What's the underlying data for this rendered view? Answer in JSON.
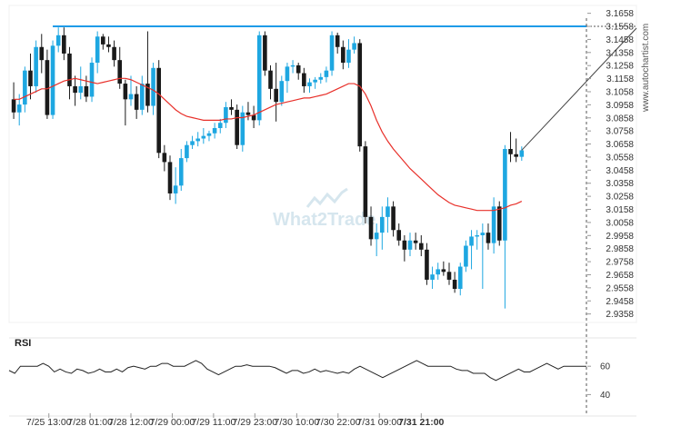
{
  "watermarks": {
    "brand": "What2Trade",
    "side": "www.autochartist.com"
  },
  "chart_data": {
    "type": "candlestick",
    "y_ticks": [
      "3.1658",
      "3.1558",
      "3.1458",
      "3.1358",
      "3.1258",
      "3.1158",
      "3.1058",
      "3.0958",
      "3.0858",
      "3.0758",
      "3.0658",
      "3.0558",
      "3.0458",
      "3.0358",
      "3.0258",
      "3.0158",
      "3.0058",
      "2.9958",
      "2.9858",
      "2.9758",
      "2.9658",
      "2.9558",
      "2.9458",
      "2.9358"
    ],
    "ylim": [
      2.9293,
      3.1718
    ],
    "x_labels": [
      "7/25 13:00",
      "7/28 01:00",
      "7/28 12:00",
      "7/29 00:00",
      "7/29 11:00",
      "7/29 23:00",
      "7/30 10:00",
      "7/30 22:00",
      "7/31 09:00",
      "7/31 21:00"
    ],
    "x_label_positions": [
      6.3,
      13.7,
      21,
      28.4,
      35.8,
      43.2,
      50.7,
      58.1,
      65.5,
      73
    ],
    "x_count": 75,
    "colors": {
      "up": "#1ea7e1",
      "down": "#1a1a1a",
      "ma": "#e8302a",
      "resistance": "#1e9be8",
      "rsi": "#222222"
    },
    "resistance_level": 3.1558,
    "candles": [
      {
        "o": 3.1,
        "h": 3.113,
        "l": 3.085,
        "c": 3.09
      },
      {
        "o": 3.09,
        "h": 3.104,
        "l": 3.08,
        "c": 3.096
      },
      {
        "o": 3.096,
        "h": 3.125,
        "l": 3.09,
        "c": 3.122
      },
      {
        "o": 3.122,
        "h": 3.135,
        "l": 3.1,
        "c": 3.11
      },
      {
        "o": 3.11,
        "h": 3.145,
        "l": 3.105,
        "c": 3.14
      },
      {
        "o": 3.14,
        "h": 3.15,
        "l": 3.12,
        "c": 3.13
      },
      {
        "o": 3.13,
        "h": 3.138,
        "l": 3.085,
        "c": 3.088
      },
      {
        "o": 3.088,
        "h": 3.145,
        "l": 3.085,
        "c": 3.141
      },
      {
        "o": 3.141,
        "h": 3.155,
        "l": 3.136,
        "c": 3.149
      },
      {
        "o": 3.149,
        "h": 3.155,
        "l": 3.13,
        "c": 3.135
      },
      {
        "o": 3.135,
        "h": 3.14,
        "l": 3.1,
        "c": 3.11
      },
      {
        "o": 3.11,
        "h": 3.118,
        "l": 3.095,
        "c": 3.105
      },
      {
        "o": 3.105,
        "h": 3.125,
        "l": 3.1,
        "c": 3.11
      },
      {
        "o": 3.11,
        "h": 3.118,
        "l": 3.098,
        "c": 3.102
      },
      {
        "o": 3.102,
        "h": 3.132,
        "l": 3.098,
        "c": 3.128
      },
      {
        "o": 3.128,
        "h": 3.152,
        "l": 3.12,
        "c": 3.148
      },
      {
        "o": 3.148,
        "h": 3.15,
        "l": 3.138,
        "c": 3.142
      },
      {
        "o": 3.142,
        "h": 3.148,
        "l": 3.136,
        "c": 3.14
      },
      {
        "o": 3.14,
        "h": 3.145,
        "l": 3.125,
        "c": 3.13
      },
      {
        "o": 3.13,
        "h": 3.14,
        "l": 3.108,
        "c": 3.112
      },
      {
        "o": 3.112,
        "h": 3.115,
        "l": 3.08,
        "c": 3.1
      },
      {
        "o": 3.1,
        "h": 3.118,
        "l": 3.095,
        "c": 3.104
      },
      {
        "o": 3.104,
        "h": 3.11,
        "l": 3.085,
        "c": 3.092
      },
      {
        "o": 3.092,
        "h": 3.118,
        "l": 3.088,
        "c": 3.112
      },
      {
        "o": 3.112,
        "h": 3.152,
        "l": 3.09,
        "c": 3.095
      },
      {
        "o": 3.095,
        "h": 3.128,
        "l": 3.088,
        "c": 3.124
      },
      {
        "o": 3.124,
        "h": 3.13,
        "l": 3.055,
        "c": 3.059
      },
      {
        "o": 3.059,
        "h": 3.065,
        "l": 3.045,
        "c": 3.052
      },
      {
        "o": 3.052,
        "h": 3.057,
        "l": 3.023,
        "c": 3.028
      },
      {
        "o": 3.028,
        "h": 3.048,
        "l": 3.02,
        "c": 3.034
      },
      {
        "o": 3.034,
        "h": 3.062,
        "l": 3.03,
        "c": 3.055
      },
      {
        "o": 3.055,
        "h": 3.068,
        "l": 3.052,
        "c": 3.065
      },
      {
        "o": 3.065,
        "h": 3.072,
        "l": 3.062,
        "c": 3.068
      },
      {
        "o": 3.068,
        "h": 3.075,
        "l": 3.064,
        "c": 3.07
      },
      {
        "o": 3.07,
        "h": 3.078,
        "l": 3.066,
        "c": 3.072
      },
      {
        "o": 3.072,
        "h": 3.076,
        "l": 3.068,
        "c": 3.074
      },
      {
        "o": 3.074,
        "h": 3.082,
        "l": 3.07,
        "c": 3.078
      },
      {
        "o": 3.078,
        "h": 3.085,
        "l": 3.074,
        "c": 3.082
      },
      {
        "o": 3.082,
        "h": 3.098,
        "l": 3.078,
        "c": 3.094
      },
      {
        "o": 3.094,
        "h": 3.1,
        "l": 3.088,
        "c": 3.092
      },
      {
        "o": 3.092,
        "h": 3.096,
        "l": 3.062,
        "c": 3.065
      },
      {
        "o": 3.065,
        "h": 3.095,
        "l": 3.06,
        "c": 3.09
      },
      {
        "o": 3.09,
        "h": 3.098,
        "l": 3.084,
        "c": 3.088
      },
      {
        "o": 3.088,
        "h": 3.095,
        "l": 3.078,
        "c": 3.084
      },
      {
        "o": 3.084,
        "h": 3.152,
        "l": 3.08,
        "c": 3.149
      },
      {
        "o": 3.149,
        "h": 3.152,
        "l": 3.118,
        "c": 3.122
      },
      {
        "o": 3.122,
        "h": 3.126,
        "l": 3.1,
        "c": 3.108
      },
      {
        "o": 3.108,
        "h": 3.128,
        "l": 3.083,
        "c": 3.098
      },
      {
        "o": 3.098,
        "h": 3.118,
        "l": 3.095,
        "c": 3.114
      },
      {
        "o": 3.114,
        "h": 3.128,
        "l": 3.105,
        "c": 3.125
      },
      {
        "o": 3.125,
        "h": 3.13,
        "l": 3.12,
        "c": 3.126
      },
      {
        "o": 3.126,
        "h": 3.128,
        "l": 3.115,
        "c": 3.12
      },
      {
        "o": 3.12,
        "h": 3.124,
        "l": 3.105,
        "c": 3.11
      },
      {
        "o": 3.11,
        "h": 3.116,
        "l": 3.105,
        "c": 3.113
      },
      {
        "o": 3.113,
        "h": 3.117,
        "l": 3.108,
        "c": 3.115
      },
      {
        "o": 3.115,
        "h": 3.12,
        "l": 3.112,
        "c": 3.117
      },
      {
        "o": 3.117,
        "h": 3.125,
        "l": 3.113,
        "c": 3.122
      },
      {
        "o": 3.122,
        "h": 3.152,
        "l": 3.118,
        "c": 3.149
      },
      {
        "o": 3.149,
        "h": 3.151,
        "l": 3.135,
        "c": 3.14
      },
      {
        "o": 3.14,
        "h": 3.145,
        "l": 3.123,
        "c": 3.128
      },
      {
        "o": 3.128,
        "h": 3.146,
        "l": 3.124,
        "c": 3.138
      },
      {
        "o": 3.138,
        "h": 3.148,
        "l": 3.135,
        "c": 3.143
      },
      {
        "o": 3.143,
        "h": 3.146,
        "l": 3.06,
        "c": 3.064
      },
      {
        "o": 3.064,
        "h": 3.068,
        "l": 3.005,
        "c": 3.01
      },
      {
        "o": 3.01,
        "h": 3.018,
        "l": 2.988,
        "c": 2.993
      },
      {
        "o": 2.993,
        "h": 3.005,
        "l": 2.98,
        "c": 2.998
      },
      {
        "o": 2.998,
        "h": 3.018,
        "l": 2.985,
        "c": 3.01
      },
      {
        "o": 3.01,
        "h": 3.025,
        "l": 2.998,
        "c": 3.018
      },
      {
        "o": 3.018,
        "h": 3.022,
        "l": 2.995,
        "c": 3.0
      },
      {
        "o": 3.0,
        "h": 3.005,
        "l": 2.988,
        "c": 2.992
      },
      {
        "o": 2.992,
        "h": 2.996,
        "l": 2.976,
        "c": 2.985
      },
      {
        "o": 2.985,
        "h": 2.998,
        "l": 2.98,
        "c": 2.992
      },
      {
        "o": 2.992,
        "h": 2.998,
        "l": 2.985,
        "c": 2.99
      },
      {
        "o": 2.99,
        "h": 2.996,
        "l": 2.98,
        "c": 2.985
      },
      {
        "o": 2.985,
        "h": 2.99,
        "l": 2.958,
        "c": 2.962
      }
    ],
    "candles_tail": [
      {
        "o": 2.962,
        "h": 2.972,
        "l": 2.955,
        "c": 2.966
      },
      {
        "o": 2.966,
        "h": 2.975,
        "l": 2.962,
        "c": 2.97
      },
      {
        "o": 2.97,
        "h": 2.976,
        "l": 2.965,
        "c": 2.968
      },
      {
        "o": 2.968,
        "h": 2.975,
        "l": 2.958,
        "c": 2.962
      },
      {
        "o": 2.962,
        "h": 2.968,
        "l": 2.952,
        "c": 2.955
      },
      {
        "o": 2.955,
        "h": 2.975,
        "l": 2.95,
        "c": 2.972
      },
      {
        "o": 2.972,
        "h": 2.992,
        "l": 2.968,
        "c": 2.988
      },
      {
        "o": 2.988,
        "h": 3.0,
        "l": 2.97,
        "c": 2.995
      },
      {
        "o": 2.995,
        "h": 3.0,
        "l": 2.985,
        "c": 2.996
      },
      {
        "o": 2.996,
        "h": 3.005,
        "l": 2.955,
        "c": 2.998
      },
      {
        "o": 2.998,
        "h": 3.005,
        "l": 2.985,
        "c": 2.99
      },
      {
        "o": 2.99,
        "h": 3.025,
        "l": 2.982,
        "c": 3.018
      },
      {
        "o": 3.018,
        "h": 3.022,
        "l": 2.988,
        "c": 2.992
      },
      {
        "o": 2.992,
        "h": 3.065,
        "l": 2.94,
        "c": 3.062
      },
      {
        "o": 3.062,
        "h": 3.075,
        "l": 3.052,
        "c": 3.058
      },
      {
        "o": 3.058,
        "h": 3.07,
        "l": 3.052,
        "c": 3.056
      },
      {
        "o": 3.056,
        "h": 3.064,
        "l": 3.053,
        "c": 3.061
      }
    ],
    "ma": [
      3.1,
      3.1,
      3.102,
      3.104,
      3.106,
      3.108,
      3.108,
      3.11,
      3.112,
      3.114,
      3.115,
      3.116,
      3.115,
      3.114,
      3.113,
      3.112,
      3.113,
      3.114,
      3.115,
      3.116,
      3.116,
      3.115,
      3.113,
      3.111,
      3.109,
      3.107,
      3.104,
      3.1,
      3.096,
      3.092,
      3.089,
      3.087,
      3.086,
      3.085,
      3.084,
      3.084,
      3.084,
      3.084,
      3.085,
      3.085,
      3.086,
      3.086,
      3.087,
      3.088,
      3.09,
      3.092,
      3.094,
      3.096,
      3.097,
      3.098,
      3.099,
      3.1,
      3.101,
      3.101,
      3.102,
      3.103,
      3.104,
      3.106,
      3.108,
      3.11,
      3.112,
      3.112,
      3.11,
      3.104,
      3.095,
      3.084,
      3.075,
      3.068,
      3.062,
      3.057,
      3.052,
      3.047,
      3.043,
      3.039,
      3.035,
      3.031,
      3.027,
      3.024,
      3.021,
      3.019,
      3.018,
      3.017,
      3.016,
      3.015,
      3.015,
      3.015,
      3.015,
      3.016,
      3.017,
      3.019,
      3.02,
      3.022
    ],
    "rsi": {
      "label": "RSI",
      "ticks": [
        "60",
        "40"
      ],
      "ylim": [
        30,
        80
      ],
      "values": [
        57,
        55,
        60,
        60,
        60,
        60,
        62,
        60,
        56,
        58,
        56,
        55,
        58,
        57,
        55,
        56,
        58,
        56,
        56,
        58,
        56,
        59,
        60,
        59,
        58,
        60,
        60,
        62,
        62,
        60,
        60,
        60,
        62,
        64,
        62,
        58,
        56,
        54,
        56,
        58,
        60,
        60,
        61,
        60,
        60,
        60,
        60,
        59,
        57,
        55,
        57,
        57,
        55,
        56,
        58,
        56,
        57,
        56,
        55,
        56,
        55,
        58,
        60,
        58,
        56,
        54,
        52,
        54,
        56,
        58,
        60,
        62,
        64,
        62,
        60,
        60,
        60,
        60,
        60,
        58,
        57,
        57,
        55,
        55,
        55,
        52,
        50,
        52,
        54,
        56,
        58,
        56,
        56,
        58,
        60,
        62,
        60,
        58,
        60,
        60,
        60,
        60,
        60
      ]
    }
  }
}
